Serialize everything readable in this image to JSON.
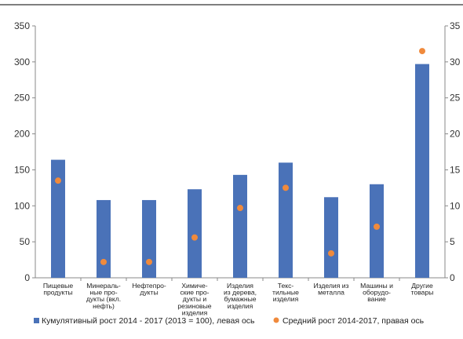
{
  "chart_data": {
    "type": "bar",
    "title": "",
    "xlabel": "",
    "ylabel": "",
    "categories": [
      [
        "Пищевые",
        "продукты"
      ],
      [
        "Минераль-",
        "ные про-",
        "дукты (вкл.",
        "нефть)"
      ],
      [
        "Нефтепро-",
        "дукты"
      ],
      [
        "Химиче-",
        "ские про-",
        "дукты и",
        "резиновые",
        "изделия"
      ],
      [
        "Изделия",
        "из дерева,",
        "бумажные",
        "изделия"
      ],
      [
        "Текс-",
        "тильные",
        "изделия"
      ],
      [
        "Изделия из",
        "металла"
      ],
      [
        "Машины и",
        "оборудо-",
        "вание"
      ],
      [
        "Другие",
        "товары"
      ]
    ],
    "left_axis": {
      "min": 0,
      "max": 350,
      "ticks": [
        0,
        50,
        100,
        150,
        200,
        250,
        300,
        350
      ],
      "tick_labels": [
        "0",
        "50",
        "100",
        "150",
        "200",
        "250",
        "300",
        "350"
      ]
    },
    "right_axis": {
      "min": 0,
      "max": 35,
      "ticks": [
        0,
        5,
        10,
        15,
        20,
        25,
        30,
        35
      ],
      "tick_labels": [
        "0",
        "5",
        "10",
        "15",
        "20",
        "25",
        "30",
        "35"
      ]
    },
    "series": [
      {
        "name": "Кумулятивный рост 2014 - 2017 (2013 = 100), левая ось",
        "type": "bar",
        "axis": "left",
        "color": "#4a72b8",
        "values": [
          164,
          108,
          108,
          123,
          143,
          160,
          112,
          130,
          297
        ]
      },
      {
        "name": "Средний рост 2014-2017, правая ось",
        "type": "scatter",
        "axis": "right",
        "color": "#f08a3c",
        "values": [
          13.5,
          2.2,
          2.2,
          5.6,
          9.7,
          12.5,
          3.4,
          7.1,
          31.5
        ]
      }
    ],
    "grid": false,
    "legend_position": "bottom"
  }
}
